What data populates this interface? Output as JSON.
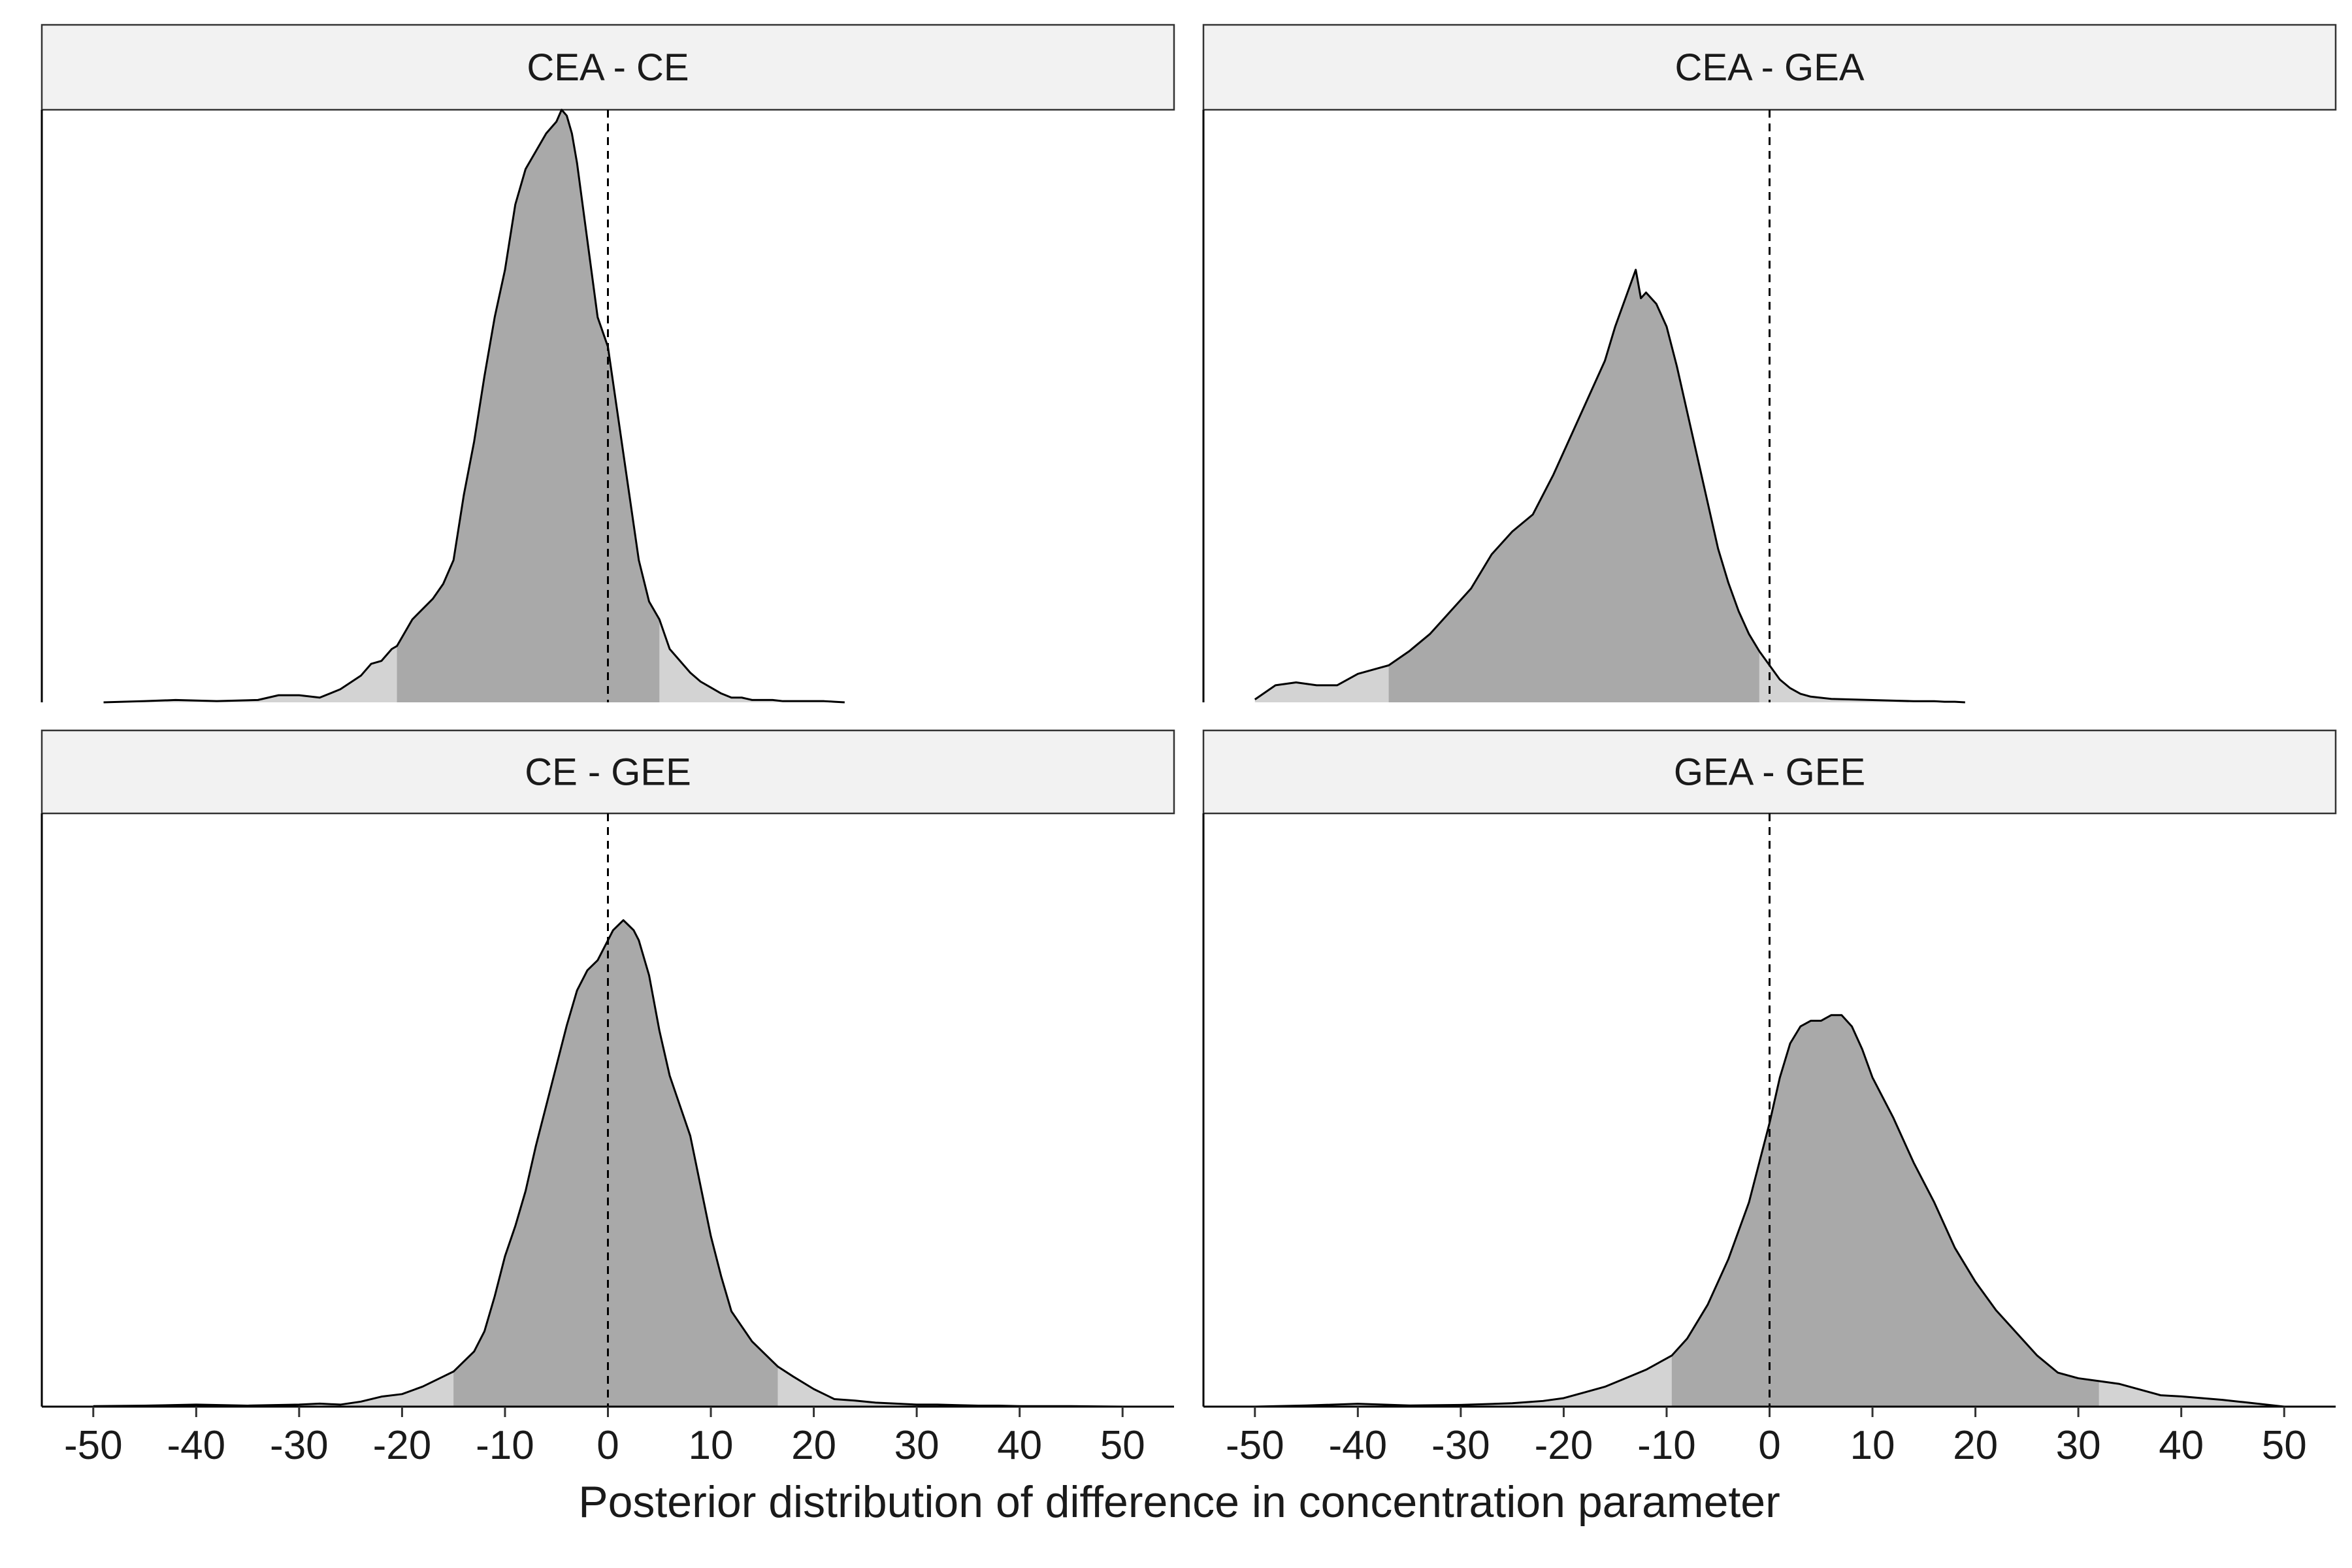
{
  "figure": {
    "xlabel": "Posterior distribution of difference in concentration parameter"
  },
  "colors": {
    "strip_fill": "#f2f2f2",
    "strip_border": "#333333",
    "density_inner": "#a9a9a9",
    "density_outer": "#d3d3d3",
    "density_line": "#000000",
    "zero_line": "#000000"
  },
  "chart_data": [
    {
      "type": "area",
      "title": "CEA - CE",
      "xlim": [
        -55,
        55
      ],
      "xticks": [
        "-50",
        "-40",
        "-30",
        "-20",
        "-10",
        "0",
        "10",
        "20",
        "30",
        "40",
        "50"
      ],
      "x_tick_values": [
        -50,
        -40,
        -30,
        -20,
        -10,
        0,
        10,
        20,
        30,
        40,
        50
      ],
      "show_x_axis": false,
      "y_ticks_shown": false,
      "grid": false,
      "reference_line_x": 0,
      "inner_interval": [
        -20.5,
        5
      ],
      "density_x": [
        -49,
        -45,
        -42,
        -38,
        -34,
        -32,
        -30,
        -28,
        -26,
        -24,
        -23,
        -22,
        -21,
        -20.5,
        -19,
        -17,
        -16,
        -15,
        -14,
        -13,
        -12,
        -11,
        -10,
        -9,
        -8,
        -7,
        -6,
        -5,
        -4.5,
        -4,
        -3.5,
        -3,
        -2,
        -1,
        0,
        1,
        2,
        3,
        4,
        5,
        6,
        7,
        8,
        9,
        10,
        11,
        12,
        13,
        14,
        15,
        16,
        17,
        18,
        19,
        20,
        21,
        22,
        23
      ],
      "density_y": [
        0,
        0.002,
        0.004,
        0.002,
        0.004,
        0.012,
        0.012,
        0.008,
        0.022,
        0.045,
        0.065,
        0.07,
        0.09,
        0.095,
        0.14,
        0.175,
        0.2,
        0.24,
        0.35,
        0.44,
        0.55,
        0.65,
        0.73,
        0.84,
        0.9,
        0.93,
        0.96,
        0.98,
        1.0,
        0.99,
        0.96,
        0.91,
        0.78,
        0.65,
        0.6,
        0.48,
        0.36,
        0.24,
        0.17,
        0.14,
        0.09,
        0.07,
        0.05,
        0.035,
        0.025,
        0.015,
        0.008,
        0.008,
        0.004,
        0.004,
        0.004,
        0.002,
        0.002,
        0.002,
        0.002,
        0.002,
        0.001,
        0
      ]
    },
    {
      "type": "area",
      "title": "CEA - GEA",
      "xlim": [
        -55,
        55
      ],
      "xticks": [
        "-50",
        "-40",
        "-30",
        "-20",
        "-10",
        "0",
        "10",
        "20",
        "30",
        "40",
        "50"
      ],
      "x_tick_values": [
        -50,
        -40,
        -30,
        -20,
        -10,
        0,
        10,
        20,
        30,
        40,
        50
      ],
      "show_x_axis": false,
      "y_ticks_shown": false,
      "grid": false,
      "reference_line_x": 0,
      "inner_interval": [
        -37,
        -1
      ],
      "density_x": [
        -50,
        -48,
        -46,
        -44,
        -42,
        -40,
        -38,
        -37,
        -35,
        -33,
        -31,
        -29,
        -27,
        -25,
        -23,
        -21,
        -19,
        -18,
        -17,
        -16,
        -15,
        -14,
        -13,
        -12.5,
        -12,
        -11,
        -10,
        -9,
        -8,
        -7,
        -6,
        -5,
        -4,
        -3,
        -2,
        -1,
        0,
        1,
        2,
        3,
        4,
        5,
        6,
        8,
        10,
        12,
        14,
        16,
        17,
        18,
        19
      ],
      "density_y": [
        0.005,
        0.03,
        0.035,
        0.03,
        0.03,
        0.05,
        0.06,
        0.065,
        0.09,
        0.12,
        0.16,
        0.2,
        0.26,
        0.3,
        0.33,
        0.4,
        0.48,
        0.52,
        0.56,
        0.6,
        0.66,
        0.71,
        0.76,
        0.71,
        0.72,
        0.7,
        0.66,
        0.59,
        0.51,
        0.43,
        0.35,
        0.27,
        0.21,
        0.16,
        0.12,
        0.09,
        0.065,
        0.04,
        0.025,
        0.015,
        0.01,
        0.008,
        0.006,
        0.005,
        0.004,
        0.003,
        0.002,
        0.002,
        0.001,
        0.001,
        0
      ]
    },
    {
      "type": "area",
      "title": "CE - GEE",
      "xlim": [
        -55,
        55
      ],
      "xticks": [
        "-50",
        "-40",
        "-30",
        "-20",
        "-10",
        "0",
        "10",
        "20",
        "30",
        "40",
        "50"
      ],
      "x_tick_values": [
        -50,
        -40,
        -30,
        -20,
        -10,
        0,
        10,
        20,
        30,
        40,
        50
      ],
      "show_x_axis": true,
      "y_ticks_shown": false,
      "grid": false,
      "reference_line_x": 0,
      "inner_interval": [
        -15,
        16.5
      ],
      "density_x": [
        -50,
        -45,
        -40,
        -35,
        -30,
        -28,
        -26,
        -24,
        -22,
        -20,
        -18,
        -16,
        -15,
        -14,
        -13,
        -12,
        -11,
        -10,
        -9,
        -8,
        -7,
        -6,
        -5,
        -4,
        -3,
        -2,
        -1,
        0,
        0.5,
        1,
        1.5,
        2,
        2.5,
        3,
        4,
        5,
        6,
        7,
        8,
        9,
        10,
        11,
        12,
        13,
        14,
        15,
        16,
        16.5,
        18,
        20,
        22,
        24,
        26,
        28,
        30,
        32,
        34,
        36,
        38,
        40,
        45,
        50
      ],
      "density_y": [
        0.001,
        0.002,
        0.004,
        0.002,
        0.004,
        0.006,
        0.004,
        0.01,
        0.02,
        0.025,
        0.04,
        0.06,
        0.07,
        0.09,
        0.11,
        0.15,
        0.22,
        0.3,
        0.36,
        0.43,
        0.52,
        0.6,
        0.68,
        0.76,
        0.83,
        0.87,
        0.89,
        0.93,
        0.95,
        0.96,
        0.97,
        0.96,
        0.95,
        0.93,
        0.86,
        0.75,
        0.66,
        0.6,
        0.54,
        0.44,
        0.34,
        0.26,
        0.19,
        0.16,
        0.13,
        0.11,
        0.09,
        0.08,
        0.06,
        0.035,
        0.015,
        0.012,
        0.008,
        0.006,
        0.004,
        0.004,
        0.003,
        0.002,
        0.002,
        0.001,
        0.001,
        0
      ]
    },
    {
      "type": "area",
      "title": "GEA - GEE",
      "xlim": [
        -55,
        55
      ],
      "xticks": [
        "-50",
        "-40",
        "-30",
        "-20",
        "-10",
        "0",
        "10",
        "20",
        "30",
        "40",
        "50"
      ],
      "x_tick_values": [
        -50,
        -40,
        -30,
        -20,
        -10,
        0,
        10,
        20,
        30,
        40,
        50
      ],
      "show_x_axis": true,
      "y_ticks_shown": false,
      "grid": false,
      "reference_line_x": 0,
      "inner_interval": [
        -9.5,
        32
      ],
      "density_x": [
        -50,
        -45,
        -40,
        -35,
        -30,
        -25,
        -22,
        -20,
        -18,
        -16,
        -14,
        -12,
        -10,
        -9.5,
        -8,
        -6,
        -4,
        -2,
        0,
        1,
        2,
        3,
        4,
        5,
        6,
        7,
        8,
        9,
        10,
        12,
        14,
        16,
        18,
        20,
        22,
        24,
        26,
        28,
        30,
        32,
        34,
        36,
        38,
        40,
        42,
        44,
        46,
        48,
        50
      ],
      "density_y": [
        0,
        0.002,
        0.005,
        0.002,
        0.003,
        0.006,
        0.01,
        0.015,
        0.025,
        0.035,
        0.05,
        0.065,
        0.085,
        0.09,
        0.12,
        0.18,
        0.26,
        0.36,
        0.5,
        0.58,
        0.64,
        0.67,
        0.68,
        0.68,
        0.69,
        0.69,
        0.67,
        0.63,
        0.58,
        0.51,
        0.43,
        0.36,
        0.28,
        0.22,
        0.17,
        0.13,
        0.09,
        0.06,
        0.05,
        0.045,
        0.04,
        0.03,
        0.02,
        0.018,
        0.015,
        0.012,
        0.008,
        0.004,
        0
      ]
    }
  ]
}
